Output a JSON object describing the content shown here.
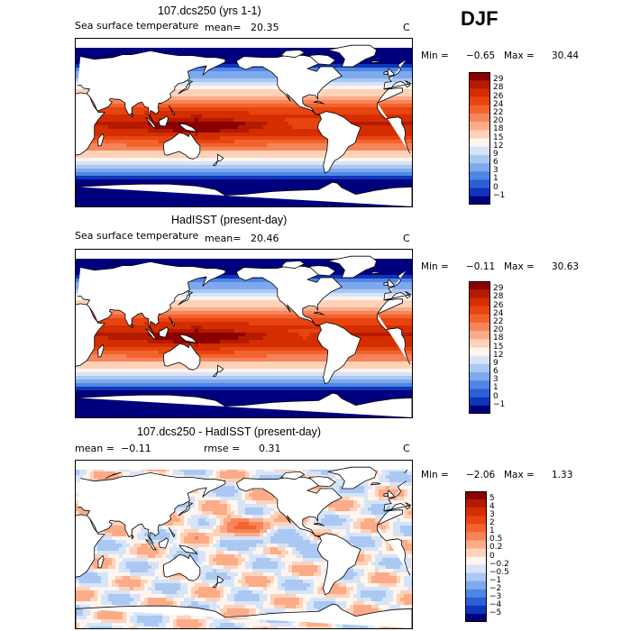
{
  "season": "DJF",
  "chart_data": [
    {
      "type": "heatmap",
      "title": "107.dcs250 (yrs 1-1)",
      "variable": "Sea surface temperature",
      "mean_label": "mean=",
      "mean_value": "20.35",
      "units": "C",
      "min_label": "Min =",
      "min_value": "−0.65",
      "max_label": "Max =",
      "max_value": "30.44",
      "colorbar_levels": [
        "29",
        "28",
        "26",
        "24",
        "22",
        "20",
        "18",
        "15",
        "12",
        "9",
        "6",
        "3",
        "1",
        "0",
        "−1"
      ],
      "colorbar_colors": [
        "#8b0000",
        "#b31a00",
        "#d42d00",
        "#e84410",
        "#f2632e",
        "#f7845a",
        "#fbab88",
        "#fdd2b8",
        "#fff4ee",
        "#d6e4f8",
        "#abc8f2",
        "#7ea9ec",
        "#4f86e6",
        "#2d5ed8",
        "#1035b8",
        "#00007f"
      ]
    },
    {
      "type": "heatmap",
      "title": "HadISST (present-day)",
      "variable": "Sea surface temperature",
      "mean_label": "mean=",
      "mean_value": "20.46",
      "units": "C",
      "min_label": "Min =",
      "min_value": "−0.11",
      "max_label": "Max =",
      "max_value": "30.63",
      "colorbar_levels": [
        "29",
        "28",
        "26",
        "24",
        "22",
        "20",
        "18",
        "15",
        "12",
        "9",
        "6",
        "3",
        "1",
        "0",
        "−1"
      ],
      "colorbar_colors": [
        "#8b0000",
        "#b31a00",
        "#d42d00",
        "#e84410",
        "#f2632e",
        "#f7845a",
        "#fbab88",
        "#fdd2b8",
        "#fff4ee",
        "#d6e4f8",
        "#abc8f2",
        "#7ea9ec",
        "#4f86e6",
        "#2d5ed8",
        "#1035b8",
        "#00007f"
      ]
    },
    {
      "type": "heatmap",
      "title": "107.dcs250 - HadISST (present-day)",
      "mean_label": "mean =",
      "mean_value": "−0.11",
      "rmse_label": "rmse =",
      "rmse_value": "0.31",
      "units": "C",
      "min_label": "Min =",
      "min_value": "−2.06",
      "max_label": "Max =",
      "max_value": "1.33",
      "colorbar_levels": [
        "5",
        "4",
        "3",
        "2",
        "1",
        "0.5",
        "0.2",
        "0",
        "−0.2",
        "−0.5",
        "−1",
        "−2",
        "−3",
        "−4",
        "−5"
      ],
      "colorbar_colors": [
        "#8b0000",
        "#b31a00",
        "#d42d00",
        "#e84410",
        "#f2632e",
        "#f7845a",
        "#fbab88",
        "#fdd2b8",
        "#fff4ee",
        "#d6e4f8",
        "#abc8f2",
        "#7ea9ec",
        "#4f86e6",
        "#2d5ed8",
        "#1035b8",
        "#00007f"
      ]
    }
  ]
}
